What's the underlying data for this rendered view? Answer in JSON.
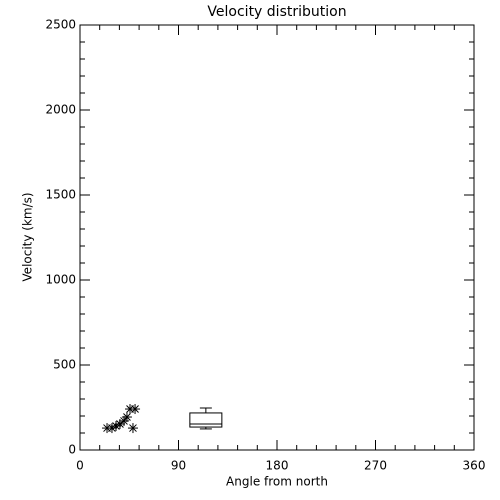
{
  "chart_data": {
    "type": "scatter",
    "title": "Velocity distribution",
    "xlabel": "Angle from north",
    "ylabel": "Velocity (km/s)",
    "x": [
      24.7,
      29.2,
      32.9,
      36.5,
      40.2,
      42.9,
      45.7,
      50.3,
      48.4
    ],
    "values": [
      129,
      129,
      141,
      153,
      171,
      194,
      241,
      241,
      129
    ],
    "color": "#000000",
    "box": {
      "x": 115,
      "min": 124,
      "q1": 135,
      "median": 153,
      "q3": 218,
      "max": 247
    },
    "xlim": [
      0,
      360
    ],
    "xticks": [
      0,
      90,
      180,
      270,
      360
    ],
    "ylim": [
      0,
      2500
    ],
    "yticks": [
      0,
      500,
      1000,
      1500,
      2000,
      2500
    ],
    "grid": false
  }
}
